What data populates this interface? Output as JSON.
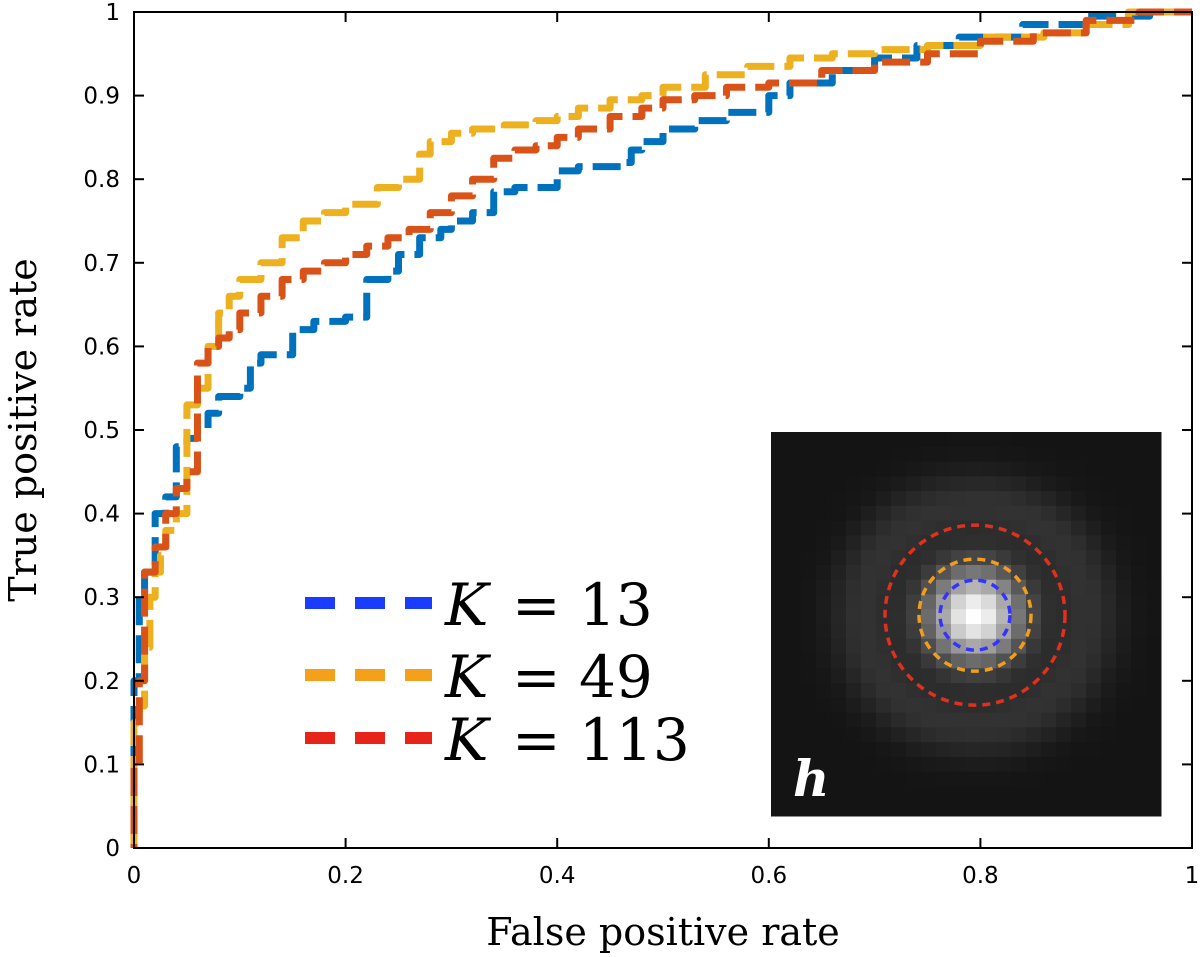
{
  "chart_data": {
    "type": "line",
    "title": "",
    "xlabel": "False positive rate",
    "ylabel": "True positive rate",
    "xlim": [
      0,
      1
    ],
    "ylim": [
      0,
      1
    ],
    "xticks": [
      0,
      0.2,
      0.4,
      0.6,
      0.8,
      1
    ],
    "xtick_labels": [
      "0",
      "0.2",
      "0.4",
      "0.6",
      "0.8",
      "1"
    ],
    "yticks": [
      0,
      0.1,
      0.2,
      0.3,
      0.4,
      0.5,
      0.6,
      0.7,
      0.8,
      0.9,
      1
    ],
    "ytick_labels": [
      "0",
      "0.1",
      "0.2",
      "0.3",
      "0.4",
      "0.5",
      "0.6",
      "0.7",
      "0.8",
      "0.9",
      "1"
    ],
    "grid": false,
    "legend_position": "lower-center",
    "series": [
      {
        "name": "K = 13",
        "legend_var": "K",
        "legend_value": "= 13",
        "line_color": "#0072BD",
        "legend_color": "#1a3cff",
        "x": [
          0,
          0,
          0.005,
          0.005,
          0.01,
          0.01,
          0.02,
          0.02,
          0.03,
          0.04,
          0.04,
          0.05,
          0.06,
          0.07,
          0.07,
          0.08,
          0.1,
          0.11,
          0.11,
          0.12,
          0.15,
          0.15,
          0.17,
          0.2,
          0.22,
          0.22,
          0.24,
          0.25,
          0.27,
          0.29,
          0.3,
          0.32,
          0.34,
          0.34,
          0.36,
          0.38,
          0.4,
          0.4,
          0.42,
          0.44,
          0.46,
          0.47,
          0.48,
          0.5,
          0.53,
          0.56,
          0.6,
          0.62,
          0.66,
          0.7,
          0.74,
          0.78,
          0.84,
          0.9,
          0.96,
          1
        ],
        "y": [
          0,
          0.15,
          0.2,
          0.28,
          0.3,
          0.33,
          0.33,
          0.39,
          0.4,
          0.42,
          0.47,
          0.48,
          0.49,
          0.5,
          0.51,
          0.52,
          0.54,
          0.55,
          0.57,
          0.58,
          0.59,
          0.61,
          0.62,
          0.63,
          0.635,
          0.65,
          0.68,
          0.69,
          0.71,
          0.73,
          0.74,
          0.75,
          0.76,
          0.78,
          0.785,
          0.79,
          0.79,
          0.8,
          0.81,
          0.815,
          0.815,
          0.82,
          0.835,
          0.845,
          0.86,
          0.87,
          0.88,
          0.9,
          0.915,
          0.93,
          0.945,
          0.96,
          0.97,
          0.985,
          0.995,
          1
        ]
      },
      {
        "name": "K = 49",
        "legend_var": "K",
        "legend_value": "= 49",
        "line_color": "#EDB120",
        "legend_color": "#f5a01a",
        "x": [
          0,
          0,
          0.005,
          0.01,
          0.015,
          0.02,
          0.025,
          0.03,
          0.04,
          0.05,
          0.05,
          0.06,
          0.07,
          0.08,
          0.09,
          0.1,
          0.12,
          0.14,
          0.16,
          0.18,
          0.2,
          0.23,
          0.25,
          0.27,
          0.28,
          0.3,
          0.32,
          0.35,
          0.38,
          0.4,
          0.42,
          0.45,
          0.48,
          0.5,
          0.54,
          0.58,
          0.62,
          0.66,
          0.7,
          0.75,
          0.8,
          0.86,
          0.9,
          0.94,
          1
        ],
        "y": [
          0,
          0.1,
          0.15,
          0.17,
          0.24,
          0.3,
          0.33,
          0.35,
          0.38,
          0.4,
          0.45,
          0.53,
          0.55,
          0.6,
          0.64,
          0.66,
          0.68,
          0.7,
          0.73,
          0.75,
          0.76,
          0.77,
          0.79,
          0.8,
          0.83,
          0.845,
          0.855,
          0.86,
          0.865,
          0.87,
          0.875,
          0.885,
          0.895,
          0.9,
          0.91,
          0.925,
          0.935,
          0.945,
          0.95,
          0.955,
          0.96,
          0.97,
          0.975,
          0.985,
          1
        ]
      },
      {
        "name": "K = 113",
        "legend_var": "K",
        "legend_value": "= 113",
        "line_color": "#D95319",
        "legend_color": "#e8231a",
        "x": [
          0,
          0,
          0.005,
          0.01,
          0.01,
          0.02,
          0.03,
          0.04,
          0.05,
          0.06,
          0.06,
          0.07,
          0.08,
          0.09,
          0.1,
          0.12,
          0.14,
          0.16,
          0.18,
          0.2,
          0.22,
          0.24,
          0.26,
          0.28,
          0.3,
          0.32,
          0.34,
          0.36,
          0.38,
          0.4,
          0.42,
          0.45,
          0.48,
          0.5,
          0.53,
          0.56,
          0.6,
          0.65,
          0.7,
          0.75,
          0.8,
          0.85,
          0.9,
          0.95,
          1
        ],
        "y": [
          0,
          0.05,
          0.1,
          0.2,
          0.3,
          0.33,
          0.36,
          0.4,
          0.43,
          0.45,
          0.5,
          0.58,
          0.6,
          0.61,
          0.62,
          0.64,
          0.66,
          0.68,
          0.69,
          0.7,
          0.71,
          0.72,
          0.73,
          0.74,
          0.76,
          0.78,
          0.8,
          0.825,
          0.835,
          0.84,
          0.85,
          0.86,
          0.875,
          0.885,
          0.895,
          0.9,
          0.91,
          0.915,
          0.93,
          0.94,
          0.95,
          0.965,
          0.975,
          0.99,
          1
        ]
      }
    ],
    "inset": {
      "description_label": "h",
      "circle_colors": [
        "#3333ff",
        "#f29d1c",
        "#e0301e"
      ]
    }
  }
}
